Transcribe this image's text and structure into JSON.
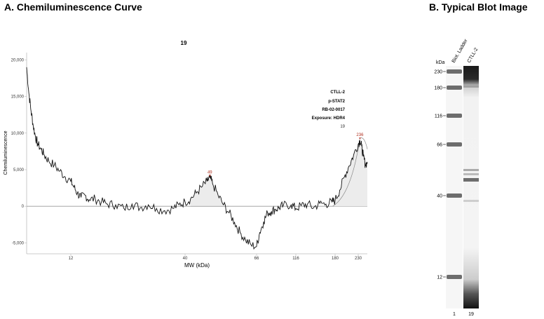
{
  "panels": {
    "a_title": "A. Chemiluminescence Curve",
    "b_title": "B.   Typical Blot Image"
  },
  "chart_data": {
    "type": "line",
    "title": "19",
    "xlabel": "MW (kDa)",
    "ylabel": "Chemiluminescence",
    "ylim": [
      -6500,
      21000
    ],
    "y_ticks": [
      {
        "value": 20000,
        "label": "20,000"
      },
      {
        "value": 15000,
        "label": "15,000"
      },
      {
        "value": 10000,
        "label": "10,000"
      },
      {
        "value": 5000,
        "label": "5,000"
      },
      {
        "value": 0,
        "label": "0"
      },
      {
        "value": -5000,
        "label": "-5,000"
      }
    ],
    "x_ticks": [
      {
        "value": 12,
        "label": "12"
      },
      {
        "value": 40,
        "label": "40"
      },
      {
        "value": 66,
        "label": "66"
      },
      {
        "value": 116,
        "label": "116"
      },
      {
        "value": 180,
        "label": "180"
      },
      {
        "value": 230,
        "label": "230"
      }
    ],
    "annotations": {
      "lines": [
        "CTLL-2",
        "p-STAT2",
        "RB-02-0017",
        "Exposure: HDR4"
      ],
      "lane_label": "19"
    },
    "peaks": [
      {
        "label": "49",
        "x": 49,
        "y": 3900
      },
      {
        "label": "236",
        "x": 236,
        "y": 9000
      }
    ],
    "series": [
      {
        "x": [
          8.0,
          8.2,
          8.4,
          8.6,
          8.8,
          9.0,
          9.3,
          9.6,
          10.0,
          10.5,
          11.0,
          11.5,
          12.0,
          12.8,
          13.6,
          14.5,
          15.5,
          16.5,
          18.0,
          19.5,
          21.0,
          23.0,
          25.0,
          27.0,
          29.0,
          31.0,
          33.0,
          35.0,
          37.0,
          38.5,
          40.0,
          42.0,
          44.0,
          46.0,
          48.0,
          49.0,
          50.0,
          52.0,
          54.0,
          56.0,
          58.0,
          60.0,
          62.0,
          64.0,
          66.0,
          70.0,
          75.0,
          80.0,
          85.0,
          90.0,
          95.0,
          100.0,
          110.0,
          116.0,
          125.0,
          135.0,
          145.0,
          155.0,
          165.0,
          175.0,
          180.0,
          190.0,
          200.0,
          210.0,
          220.0,
          230.0,
          236.0,
          242.0,
          248.0,
          255.0,
          262.0
        ],
        "y": [
          19000,
          15500,
          13000,
          11000,
          9500,
          8500,
          7800,
          7000,
          6200,
          5600,
          4800,
          4000,
          3400,
          2600,
          1800,
          1200,
          1500,
          900,
          1000,
          600,
          300,
          200,
          -300,
          300,
          -200,
          200,
          -300,
          -600,
          -300,
          200,
          600,
          1000,
          1800,
          2600,
          3400,
          3900,
          3100,
          1500,
          200,
          -900,
          -2200,
          -3600,
          -4600,
          -5300,
          -5500,
          -3600,
          -2100,
          -900,
          -700,
          -400,
          -200,
          100,
          200,
          -300,
          100,
          300,
          -200,
          400,
          300,
          600,
          800,
          2200,
          4000,
          5500,
          7000,
          8500,
          9000,
          8200,
          6800,
          5700,
          6000
        ]
      }
    ]
  },
  "blot": {
    "kda_label": "kDa",
    "lane_headers": [
      "Biot. Ladder",
      "CTLL-2"
    ],
    "lane_numbers": [
      "1",
      "19"
    ],
    "markers": [
      {
        "kda": "230"
      },
      {
        "kda": "180"
      },
      {
        "kda": "116"
      },
      {
        "kda": "66"
      },
      {
        "kda": "40"
      },
      {
        "kda": "12"
      }
    ]
  }
}
